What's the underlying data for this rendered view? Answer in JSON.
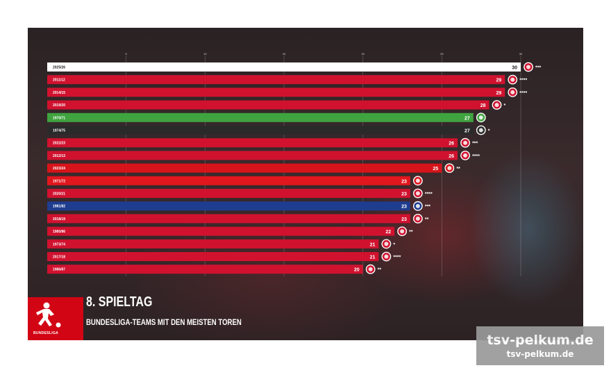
{
  "header": {
    "title": "8. SPIELTAG",
    "subtitle": "BUNDESLIGA-TEAMS MIT DEN MEISTEN TOREN",
    "logo_text": "BUNDESLIGA"
  },
  "watermark": {
    "line1": "tsv-pelkum.de",
    "line2": "tsv-pelkum.de"
  },
  "colors": {
    "current": "#ffffff",
    "bayern": "#d0122f",
    "gladbach": "#3fa33f",
    "frankfurt": "#2a2a2a",
    "leverkusen": "#d7141a",
    "hsv": "#1f3d8f",
    "cologne": "#e1171e"
  },
  "chart_data": {
    "type": "bar",
    "orientation": "horizontal",
    "title": "8. SPIELTAG",
    "subtitle": "BUNDESLIGA-TEAMS MIT DEN MEISTEN TOREN",
    "xlim": [
      0,
      30
    ],
    "grid": true,
    "legend": "none",
    "categories": [
      "2025/26",
      "2011/12",
      "2014/15",
      "2019/20",
      "1970/71",
      "1974/75",
      "2022/23",
      "2012/13",
      "2023/24",
      "1971/72",
      "2020/21",
      "1981/82",
      "2018/19",
      "1985/86",
      "1973/74",
      "2017/18",
      "1986/87"
    ],
    "values": [
      30,
      29,
      29,
      28,
      27,
      27,
      26,
      26,
      25,
      23,
      23,
      23,
      23,
      22,
      21,
      21,
      20
    ],
    "teams": [
      "bayern",
      "bayern",
      "bayern",
      "bayern",
      "gladbach",
      "frankfurt",
      "bayern",
      "bayern",
      "leverkusen",
      "cologne",
      "bayern",
      "hsv",
      "bayern",
      "bayern",
      "bayern",
      "bayern",
      "bayern"
    ],
    "stars": [
      "***",
      "****",
      "****",
      "*",
      "",
      "*",
      "***",
      "****",
      "**",
      "",
      "****",
      "***",
      "**",
      "**",
      "*",
      "****",
      "**"
    ],
    "icons": [
      "bayern-crest-icon",
      "bayern-crest-icon",
      "bayern-crest-icon",
      "bayern-crest-icon",
      "gladbach-crest-icon",
      "frankfurt-crest-icon",
      "bayern-crest-icon",
      "bayern-crest-icon",
      "leverkusen-crest-icon",
      "cologne-crest-icon",
      "bayern-crest-icon",
      "hsv-crest-icon",
      "bayern-crest-icon",
      "bayern-crest-icon",
      "bayern-crest-icon",
      "bayern-crest-icon",
      "bayern-crest-icon"
    ]
  }
}
